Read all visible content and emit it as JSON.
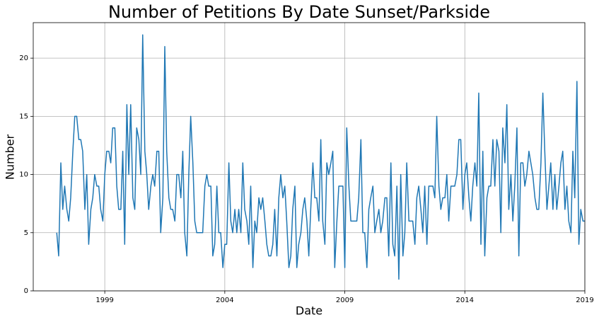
{
  "chart_data": {
    "type": "line",
    "title": "Number of Petitions By Date Sunset/Parkside",
    "x_label": "Date",
    "y_label": "Number",
    "x": [
      1997,
      1997.08,
      1997.17,
      1997.25,
      1997.33,
      1997.42,
      1997.5,
      1997.58,
      1997.67,
      1997.75,
      1997.83,
      1997.92,
      1998,
      1998.08,
      1998.17,
      1998.25,
      1998.33,
      1998.42,
      1998.5,
      1998.58,
      1998.67,
      1998.75,
      1998.83,
      1998.92,
      1999,
      1999.08,
      1999.17,
      1999.25,
      1999.33,
      1999.42,
      1999.5,
      1999.58,
      1999.67,
      1999.75,
      1999.83,
      1999.92,
      2000,
      2000.08,
      2000.17,
      2000.25,
      2000.33,
      2000.42,
      2000.5,
      2000.58,
      2000.67,
      2000.75,
      2000.83,
      2000.92,
      2001,
      2001.08,
      2001.17,
      2001.25,
      2001.33,
      2001.42,
      2001.5,
      2001.58,
      2001.67,
      2001.75,
      2001.83,
      2001.92,
      2002,
      2002.08,
      2002.17,
      2002.25,
      2002.33,
      2002.42,
      2002.5,
      2002.58,
      2002.67,
      2002.75,
      2002.83,
      2002.92,
      2003,
      2003.08,
      2003.17,
      2003.25,
      2003.33,
      2003.42,
      2003.5,
      2003.58,
      2003.67,
      2003.75,
      2003.83,
      2003.92,
      2004,
      2004.08,
      2004.17,
      2004.25,
      2004.33,
      2004.42,
      2004.5,
      2004.58,
      2004.67,
      2004.75,
      2004.83,
      2004.92,
      2005,
      2005.08,
      2005.17,
      2005.25,
      2005.33,
      2005.42,
      2005.5,
      2005.58,
      2005.67,
      2005.75,
      2005.83,
      2005.92,
      2006,
      2006.08,
      2006.17,
      2006.25,
      2006.33,
      2006.42,
      2006.5,
      2006.58,
      2006.67,
      2006.75,
      2006.83,
      2006.92,
      2007,
      2007.08,
      2007.17,
      2007.25,
      2007.33,
      2007.42,
      2007.5,
      2007.58,
      2007.67,
      2007.75,
      2007.83,
      2007.92,
      2008,
      2008.08,
      2008.17,
      2008.25,
      2008.33,
      2008.42,
      2008.5,
      2008.58,
      2008.67,
      2008.75,
      2008.83,
      2008.92,
      2009,
      2009.08,
      2009.17,
      2009.25,
      2009.33,
      2009.42,
      2009.5,
      2009.58,
      2009.67,
      2009.75,
      2009.83,
      2009.92,
      2010,
      2010.08,
      2010.17,
      2010.25,
      2010.33,
      2010.42,
      2010.5,
      2010.58,
      2010.67,
      2010.75,
      2010.83,
      2010.92,
      2011,
      2011.08,
      2011.17,
      2011.25,
      2011.33,
      2011.42,
      2011.5,
      2011.58,
      2011.67,
      2011.75,
      2011.83,
      2011.92,
      2012,
      2012.08,
      2012.17,
      2012.25,
      2012.33,
      2012.42,
      2012.5,
      2012.58,
      2012.67,
      2012.75,
      2012.83,
      2012.92,
      2013,
      2013.08,
      2013.17,
      2013.25,
      2013.33,
      2013.42,
      2013.5,
      2013.58,
      2013.67,
      2013.75,
      2013.83,
      2013.92,
      2014,
      2014.08,
      2014.17,
      2014.25,
      2014.33,
      2014.42,
      2014.5,
      2014.58,
      2014.67,
      2014.75,
      2014.83,
      2014.92,
      2015,
      2015.08,
      2015.17,
      2015.25,
      2015.33,
      2015.42,
      2015.5,
      2015.58,
      2015.67,
      2015.75,
      2015.83,
      2015.92,
      2016,
      2016.08,
      2016.17,
      2016.25,
      2016.33,
      2016.42,
      2016.5,
      2016.58,
      2016.67,
      2016.75,
      2016.83,
      2016.92,
      2017,
      2017.08,
      2017.17,
      2017.25,
      2017.33,
      2017.42,
      2017.5,
      2017.58,
      2017.67,
      2017.75,
      2017.83,
      2017.92,
      2018,
      2018.08,
      2018.17,
      2018.25,
      2018.33,
      2018.42,
      2018.5,
      2018.58,
      2018.67,
      2018.75,
      2018.83,
      2018.92,
      2019
    ],
    "values": [
      5,
      3,
      11,
      7,
      9,
      7,
      6,
      8,
      12,
      15,
      15,
      13,
      13,
      12,
      7,
      10,
      4,
      7,
      8,
      10,
      9,
      9,
      7,
      6,
      10,
      12,
      12,
      11,
      14,
      14,
      9,
      7,
      7,
      12,
      4,
      16,
      10,
      16,
      8,
      7,
      14,
      13,
      10,
      22,
      12,
      10,
      7,
      9,
      10,
      9,
      12,
      12,
      5,
      8,
      21,
      12,
      8,
      7,
      7,
      6,
      10,
      10,
      8,
      12,
      5,
      3,
      10,
      15,
      11,
      6,
      5,
      5,
      5,
      5,
      9,
      10,
      9,
      9,
      3,
      4,
      9,
      5,
      5,
      2,
      4,
      4,
      11,
      6,
      5,
      7,
      5,
      7,
      5,
      11,
      7,
      6,
      4,
      9,
      2,
      6,
      5,
      8,
      7,
      8,
      6,
      4,
      3,
      3,
      4,
      7,
      3,
      8,
      10,
      8,
      9,
      6,
      2,
      3,
      7,
      9,
      2,
      4,
      5,
      7,
      8,
      6,
      3,
      7,
      11,
      8,
      8,
      6,
      13,
      6,
      4,
      11,
      10,
      11,
      12,
      2,
      6,
      9,
      9,
      9,
      2,
      14,
      9,
      6,
      6,
      6,
      6,
      8,
      13,
      5,
      5,
      2,
      7,
      8,
      9,
      5,
      6,
      7,
      5,
      6,
      8,
      8,
      3,
      11,
      4,
      3,
      9,
      1,
      10,
      3,
      5,
      11,
      6,
      6,
      6,
      4,
      8,
      9,
      7,
      5,
      9,
      4,
      9,
      9,
      9,
      8,
      15,
      9,
      7,
      8,
      8,
      10,
      6,
      9,
      9,
      9,
      10,
      13,
      13,
      7,
      10,
      11,
      8,
      6,
      9,
      11,
      9,
      17,
      4,
      12,
      3,
      8,
      9,
      9,
      13,
      9,
      13,
      12,
      5,
      14,
      11,
      16,
      7,
      10,
      6,
      9,
      14,
      3,
      11,
      11,
      9,
      10,
      12,
      11,
      10,
      8,
      7,
      7,
      11,
      17,
      12,
      7,
      9,
      11,
      7,
      10,
      7,
      9,
      11,
      12,
      7,
      9,
      6,
      5,
      12,
      8,
      18,
      4,
      7,
      6,
      6
    ],
    "color": "#1f77b4",
    "xlim": [
      1996.02,
      2019
    ],
    "xticks": [
      1999,
      2004,
      2009,
      2014,
      2019
    ],
    "ylim": [
      0,
      23.05
    ],
    "yticks": [
      0,
      5,
      10,
      15,
      20
    ],
    "grid": true
  }
}
